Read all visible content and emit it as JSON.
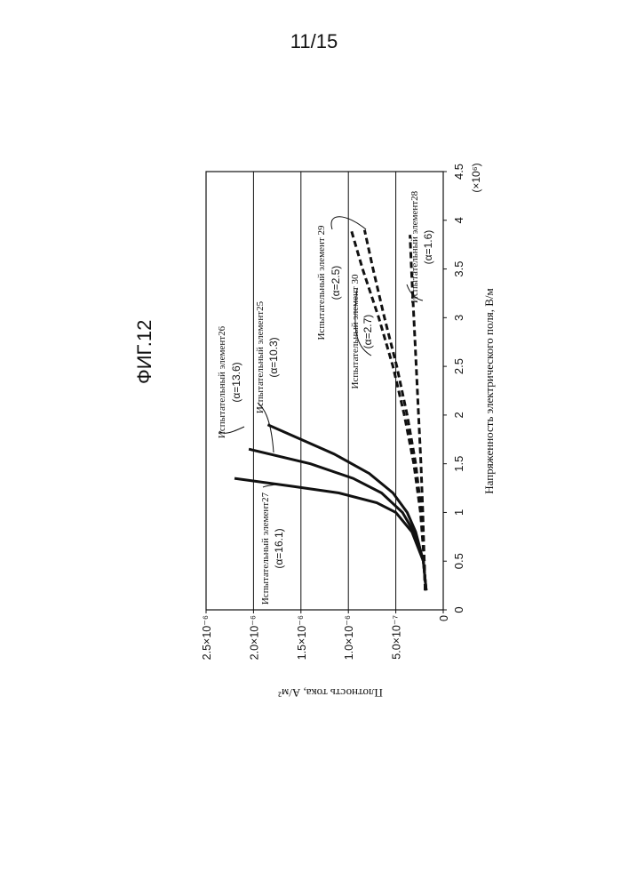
{
  "page": {
    "number": "11/15",
    "figure_title": "ФИГ.12"
  },
  "chart_data": {
    "type": "line",
    "orientation": "rotated-90-ccw",
    "xlabel": "Напряженность электрического поля, В/м",
    "ylabel": "Плотность тока, А/м²",
    "x_multiplier": "(×10⁶)",
    "xlim": [
      0,
      4.5
    ],
    "ylim": [
      0,
      2.5e-06
    ],
    "grid": true,
    "x_ticks": [
      {
        "value": 0,
        "label": "0"
      },
      {
        "value": 0.5,
        "label": "0.5"
      },
      {
        "value": 1,
        "label": "1"
      },
      {
        "value": 1.5,
        "label": "1.5"
      },
      {
        "value": 2,
        "label": "2"
      },
      {
        "value": 2.5,
        "label": "2.5"
      },
      {
        "value": 3,
        "label": "3"
      },
      {
        "value": 3.5,
        "label": "3.5"
      },
      {
        "value": 4,
        "label": "4"
      },
      {
        "value": 4.5,
        "label": "4.5"
      }
    ],
    "y_ticks": [
      {
        "value": 0,
        "label": "0"
      },
      {
        "value": 5e-07,
        "label": "5.0×10⁻⁷"
      },
      {
        "value": 1e-06,
        "label": "1.0×10⁻⁶"
      },
      {
        "value": 1.5e-06,
        "label": "1.5×10⁻⁶"
      },
      {
        "value": 2e-06,
        "label": "2.0×10⁻⁶"
      },
      {
        "value": 2.5e-06,
        "label": "2.5×10⁻⁶"
      }
    ],
    "series": [
      {
        "name": "Испытательный элемент26",
        "alpha": "(α=13.6)",
        "style": "solid",
        "x": [
          0.2,
          0.5,
          0.8,
          1.0,
          1.2,
          1.4,
          1.6,
          1.75,
          1.9
        ],
        "y": [
          1.8e-07,
          2.1e-07,
          2.9e-07,
          3.8e-07,
          5.3e-07,
          7.8e-07,
          1.15e-06,
          1.5e-06,
          1.85e-06
        ]
      },
      {
        "name": "Испытательный элемент25",
        "alpha": "(α=10.3)",
        "style": "solid",
        "x": [
          0.2,
          0.5,
          0.8,
          1.0,
          1.2,
          1.35,
          1.5,
          1.65
        ],
        "y": [
          1.8e-07,
          2.1e-07,
          3.1e-07,
          4.3e-07,
          6.5e-07,
          9.5e-07,
          1.4e-06,
          2.05e-06
        ]
      },
      {
        "name": "Испытательный элемент27",
        "alpha": "(α=16.1)",
        "style": "solid",
        "x": [
          0.2,
          0.5,
          0.8,
          1.0,
          1.1,
          1.2,
          1.27,
          1.35
        ],
        "y": [
          1.8e-07,
          2.1e-07,
          3.3e-07,
          5e-07,
          7e-07,
          1.1e-06,
          1.6e-06,
          2.2e-06
        ]
      },
      {
        "name": "Испытательный элемент 29",
        "alpha": "(α=2.5)",
        "style": "dashed",
        "x": [
          0.2,
          0.5,
          1.0,
          1.5,
          2.0,
          2.5,
          3.0,
          3.5,
          3.9
        ],
        "y": [
          1.9e-07,
          2e-07,
          2.4e-07,
          3.1e-07,
          4.1e-07,
          5.3e-07,
          6.8e-07,
          8.5e-07,
          9.7e-07
        ]
      },
      {
        "name": "Испытательный элемент 30",
        "alpha": "(α=2.7)",
        "style": "dashed",
        "x": [
          0.2,
          0.5,
          1.0,
          1.5,
          2.0,
          2.5,
          3.0,
          3.5,
          3.9
        ],
        "y": [
          1.9e-07,
          2e-07,
          2.3e-07,
          2.9e-07,
          3.8e-07,
          4.9e-07,
          6.2e-07,
          7.4e-07,
          8.3e-07
        ]
      },
      {
        "name": "Испытательный элемент28",
        "alpha": "(α=1.6)",
        "style": "dashed",
        "x": [
          0.2,
          0.5,
          1.0,
          1.5,
          2.0,
          2.5,
          3.0,
          3.5,
          3.85
        ],
        "y": [
          1.9e-07,
          2e-07,
          2.15e-07,
          2.35e-07,
          2.6e-07,
          2.85e-07,
          3.1e-07,
          3.35e-07,
          3.5e-07
        ]
      }
    ]
  }
}
